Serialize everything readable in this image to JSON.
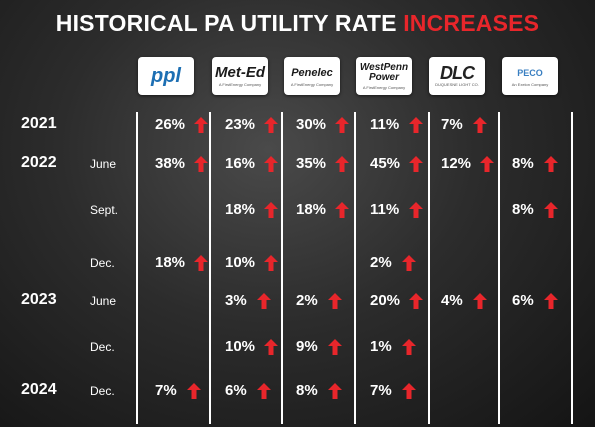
{
  "title": {
    "main": "HISTORICAL PA UTILITY RATE ",
    "accent": "INCREASES"
  },
  "colors": {
    "accent": "#e8262b",
    "text": "#ffffff"
  },
  "utilities": [
    {
      "id": "ppl",
      "name": "ppl",
      "sub": ""
    },
    {
      "id": "meted",
      "name": "Met-Ed",
      "sub": "A FirstEnergy Company"
    },
    {
      "id": "penelec",
      "name": "Penelec",
      "sub": "A FirstEnergy Company"
    },
    {
      "id": "wpp",
      "name": "WestPenn Power",
      "sub": "A FirstEnergy Company"
    },
    {
      "id": "dlc",
      "name": "DLC",
      "sub": "DUQUESNE LIGHT CO."
    },
    {
      "id": "peco",
      "name": "PECO",
      "sub": "An Exelon Company"
    }
  ],
  "rows": [
    {
      "year": "2021",
      "month": "",
      "values": [
        "26%",
        "23%",
        "30%",
        "11%",
        "7%",
        ""
      ]
    },
    {
      "year": "2022",
      "month": "June",
      "values": [
        "38%",
        "16%",
        "35%",
        "45%",
        "12%",
        "8%"
      ]
    },
    {
      "year": "",
      "month": "Sept.",
      "values": [
        "",
        "18%",
        "18%",
        "11%",
        "",
        "8%"
      ]
    },
    {
      "year": "",
      "month": "Dec.",
      "values": [
        "18%",
        "10%",
        "",
        "2%",
        "",
        ""
      ]
    },
    {
      "year": "2023",
      "month": "June",
      "values": [
        "",
        "3%",
        "2%",
        "20%",
        "4%",
        "6%"
      ]
    },
    {
      "year": "",
      "month": "Dec.",
      "values": [
        "",
        "10%",
        "9%",
        "1%",
        "",
        ""
      ]
    },
    {
      "year": "2024",
      "month": "Dec.",
      "values": [
        "7%",
        "6%",
        "8%",
        "7%",
        "",
        ""
      ]
    }
  ],
  "arrow_icon": "up-arrow-icon"
}
